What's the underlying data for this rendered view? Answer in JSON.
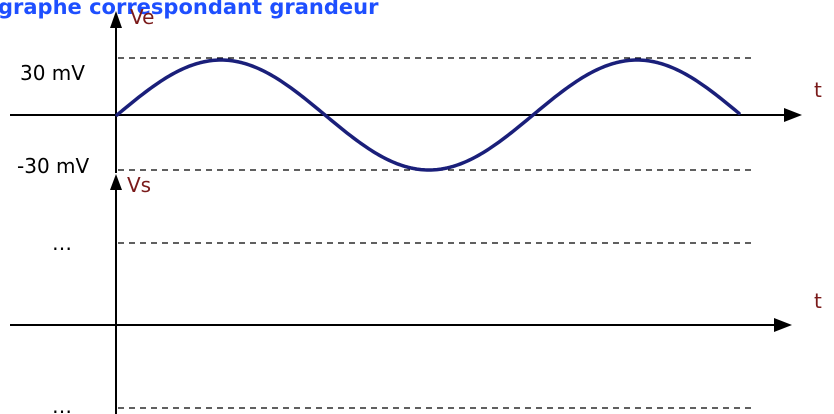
{
  "title": "graphe correspondant grandeur",
  "input_graph": {
    "axis_label": "Ve",
    "time_label": "t",
    "max_label": "30 mV",
    "min_label": "-30 mV"
  },
  "output_graph": {
    "axis_label": "Vs",
    "time_label": "t",
    "max_label": "…",
    "min_label": "…"
  },
  "colors": {
    "title": "#1e4fff",
    "wave": "#1a1f7a",
    "axis_labels": "#7a1a1a"
  }
}
